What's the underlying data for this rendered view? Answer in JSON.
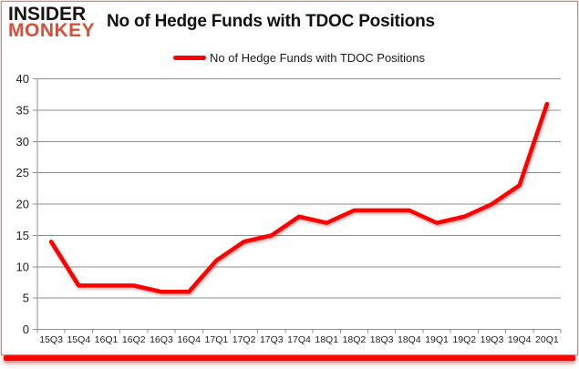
{
  "logo": {
    "line1": "INSIDER",
    "line2": "MONKEY"
  },
  "header": {
    "title": "No of Hedge Funds with TDOC Positions"
  },
  "legend": {
    "label": "No of Hedge Funds with TDOC Positions"
  },
  "colors": {
    "line": "#fe0000",
    "grid": "#8f8f8f",
    "axis": "#8f8f8f",
    "tick_text": "#1f1f1f",
    "logo_black": "#161311",
    "logo_red": "#d94e38",
    "bottom_bar": "#fb0404"
  },
  "chart_data": {
    "type": "line",
    "title": "No of Hedge Funds with TDOC Positions",
    "categories": [
      "15Q3",
      "15Q4",
      "16Q1",
      "16Q2",
      "16Q3",
      "16Q4",
      "17Q1",
      "17Q2",
      "17Q3",
      "17Q4",
      "18Q1",
      "18Q2",
      "18Q3",
      "18Q4",
      "19Q1",
      "19Q2",
      "19Q3",
      "19Q4",
      "20Q1"
    ],
    "series": [
      {
        "name": "No of Hedge Funds with TDOC Positions",
        "values": [
          14,
          7,
          7,
          7,
          6,
          6,
          11,
          14,
          15,
          18,
          17,
          19,
          19,
          19,
          17,
          18,
          20,
          23,
          36
        ]
      }
    ],
    "xlabel": "",
    "ylabel": "",
    "ylim": [
      0,
      40
    ],
    "ytick_step": 5,
    "grid": true,
    "legend_position": "top-center"
  }
}
